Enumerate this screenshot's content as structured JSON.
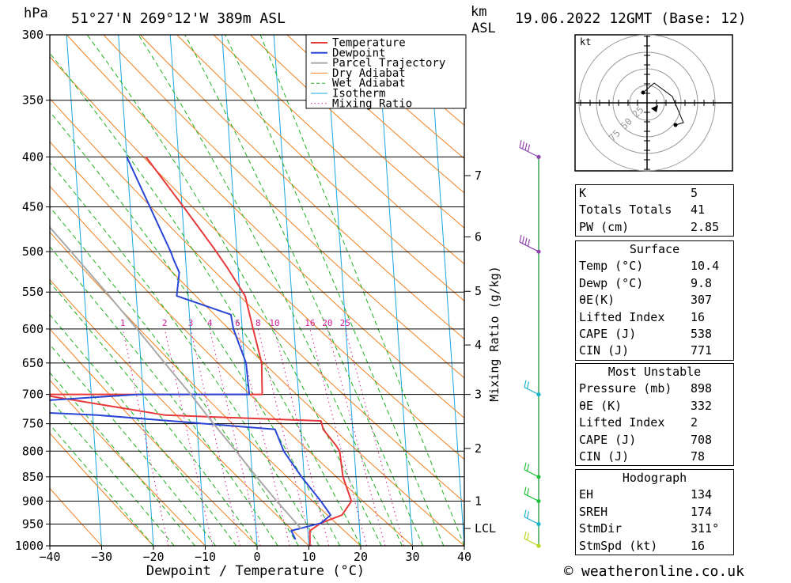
{
  "header": {
    "hpa_unit": "hPa",
    "location": "51°27'N  269°12'W  389m  ASL",
    "km_unit": "km",
    "asl_unit": "ASL",
    "datetime": "19.06.2022  12GMT  (Base: 12)"
  },
  "footer": {
    "copyright_symbol": "©",
    "site": "weatheronline.co.uk"
  },
  "chart_data": {
    "type": "skew-t",
    "xlabel": "Dewpoint / Temperature (°C)",
    "ylabel": "hPa",
    "mixing_ratio_label": "Mixing Ratio (g/kg)",
    "temperature_ticks": [
      -40,
      -30,
      -20,
      -10,
      0,
      10,
      20,
      30,
      40
    ],
    "temperature_range": [
      -40,
      40
    ],
    "pressure_range": [
      300,
      1000
    ],
    "pressure_levels": [
      300,
      350,
      400,
      450,
      500,
      550,
      600,
      650,
      700,
      750,
      800,
      850,
      900,
      950,
      1000
    ],
    "km_ticks": [
      {
        "label": "7",
        "pressure": 418
      },
      {
        "label": "6",
        "pressure": 483
      },
      {
        "label": "5",
        "pressure": 549
      },
      {
        "label": "4",
        "pressure": 623
      },
      {
        "label": "3",
        "pressure": 700
      },
      {
        "label": "2",
        "pressure": 795
      },
      {
        "label": "1",
        "pressure": 900
      },
      {
        "label": "LCL",
        "pressure": 960
      }
    ],
    "mixing_ratio_values": [
      "1",
      "2",
      "3",
      "4",
      "6",
      "8",
      "10",
      "16",
      "20",
      "25"
    ],
    "legend": [
      {
        "name": "Temperature",
        "color": "#e8393a",
        "style": "solid"
      },
      {
        "name": "Dewpoint",
        "color": "#2a46d6",
        "style": "solid"
      },
      {
        "name": "Parcel Trajectory",
        "color": "#a9a9a9",
        "style": "solid"
      },
      {
        "name": "Dry Adiabat",
        "color": "#f08020",
        "style": "solid"
      },
      {
        "name": "Wet Adiabat",
        "color": "#20b020",
        "style": "dashed"
      },
      {
        "name": "Isotherm",
        "color": "#1aa7e0",
        "style": "solid"
      },
      {
        "name": "Mixing Ratio",
        "color": "#d0209a",
        "style": "dotted"
      }
    ],
    "series": [
      {
        "name": "Temperature",
        "points": [
          [
            1000,
            10.2
          ],
          [
            965,
            10.4
          ],
          [
            948,
            12.6
          ],
          [
            930,
            16.8
          ],
          [
            900,
            18.8
          ],
          [
            850,
            17.5
          ],
          [
            800,
            17.2
          ],
          [
            790,
            16.6
          ],
          [
            760,
            14.3
          ],
          [
            745,
            14.0
          ],
          [
            735,
            -16
          ],
          [
            700,
            -40
          ],
          [
            700,
            3.0
          ],
          [
            650,
            3.3
          ],
          [
            600,
            2.1
          ],
          [
            555,
            1.0
          ],
          [
            520,
            -2.0
          ],
          [
            495,
            -4.5
          ],
          [
            450,
            -9.7
          ],
          [
            400,
            -16.3
          ]
        ]
      },
      {
        "name": "Dewpoint",
        "points": [
          [
            985,
            7.5
          ],
          [
            965,
            6.8
          ],
          [
            960,
            8.5
          ],
          [
            948,
            12.6
          ],
          [
            930,
            14.6
          ],
          [
            900,
            12.9
          ],
          [
            850,
            9.5
          ],
          [
            800,
            6.4
          ],
          [
            760,
            5.0
          ],
          [
            735,
            -29
          ],
          [
            722,
            -60
          ],
          [
            700,
            -21
          ],
          [
            700,
            0.5
          ],
          [
            650,
            0.3
          ],
          [
            600,
            -1.7
          ],
          [
            580,
            -2.0
          ],
          [
            555,
            -12.2
          ],
          [
            525,
            -11.4
          ],
          [
            510,
            -12.3
          ],
          [
            500,
            -12.8
          ],
          [
            400,
            -20.0
          ]
        ]
      },
      {
        "name": "Parcel Trajectory",
        "points": [
          [
            960,
            8.7
          ],
          [
            900,
            4.4
          ],
          [
            850,
            0.8
          ],
          [
            800,
            -2.8
          ],
          [
            750,
            -6.8
          ],
          [
            700,
            -10.8
          ],
          [
            650,
            -15.4
          ],
          [
            600,
            -20.3
          ],
          [
            550,
            -25.8
          ],
          [
            500,
            -32.0
          ],
          [
            450,
            -39.0
          ],
          [
            400,
            -46.5
          ],
          [
            350,
            -55.0
          ],
          [
            300,
            -64.5
          ]
        ]
      }
    ],
    "wind_barbs": [
      {
        "pressure": 400,
        "color": "#8e44ad"
      },
      {
        "pressure": 500,
        "color": "#8e44ad"
      },
      {
        "pressure": 700,
        "color": "#1bb3c8"
      },
      {
        "pressure": 850,
        "color": "#22c03a"
      },
      {
        "pressure": 900,
        "color": "#22c03a"
      },
      {
        "pressure": 950,
        "color": "#1bb3c8"
      },
      {
        "pressure": 1000,
        "color": "#b8d820"
      }
    ],
    "hodograph": {
      "unit": "kt",
      "ring_labels": [
        "25",
        "50",
        "75"
      ]
    }
  },
  "indices": {
    "basic": [
      {
        "label": "K",
        "value": "5"
      },
      {
        "label": "Totals Totals",
        "value": "41"
      },
      {
        "label": "PW (cm)",
        "value": "2.85"
      }
    ],
    "surface": {
      "title": "Surface",
      "rows": [
        {
          "label": "Temp (°C)",
          "value": "10.4"
        },
        {
          "label": "Dewp (°C)",
          "value": "9.8"
        },
        {
          "label": "θE(K)",
          "value": "307"
        },
        {
          "label": "Lifted Index",
          "value": "16"
        },
        {
          "label": "CAPE (J)",
          "value": "538"
        },
        {
          "label": "CIN (J)",
          "value": "771"
        }
      ]
    },
    "most_unstable": {
      "title": "Most Unstable",
      "rows": [
        {
          "label": "Pressure (mb)",
          "value": "898"
        },
        {
          "label": "θE (K)",
          "value": "332"
        },
        {
          "label": "Lifted Index",
          "value": "2"
        },
        {
          "label": "CAPE (J)",
          "value": "708"
        },
        {
          "label": "CIN (J)",
          "value": "78"
        }
      ]
    },
    "hodograph": {
      "title": "Hodograph",
      "rows": [
        {
          "label": "EH",
          "value": "134"
        },
        {
          "label": "SREH",
          "value": "174"
        },
        {
          "label": "StmDir",
          "value": "311°"
        },
        {
          "label": "StmSpd (kt)",
          "value": "16"
        }
      ]
    }
  }
}
